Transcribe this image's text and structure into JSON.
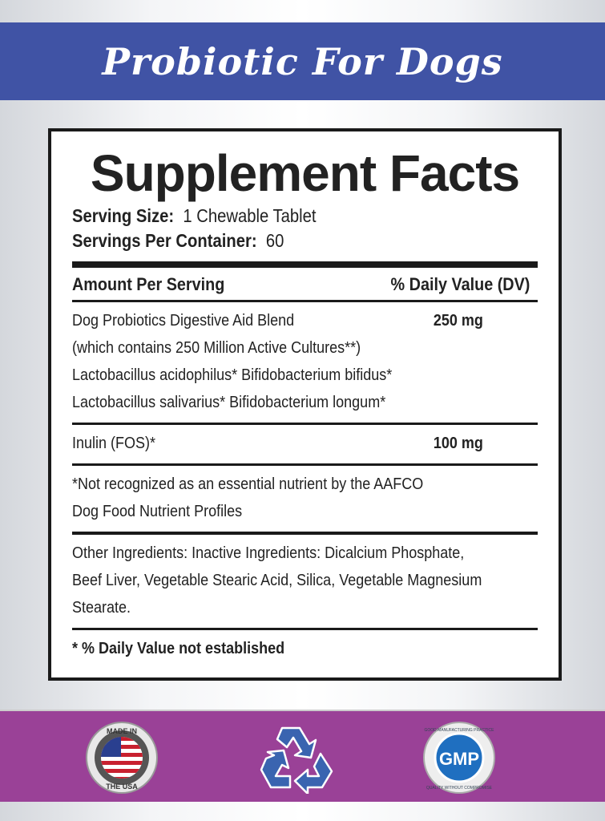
{
  "header": {
    "title": "Probiotic For Dogs"
  },
  "facts": {
    "heading": "Supplement Facts",
    "serving_size_label": "Serving Size:",
    "serving_size_value": "1 Chewable Tablet",
    "servings_label": "Servings Per Container:",
    "servings_value": "60",
    "col_amount": "Amount  Per Serving",
    "col_dv": "% Daily Value (DV)",
    "blend": {
      "lines": [
        "Dog Probiotics Digestive Aid Blend",
        "(which contains 250 Million Active Cultures**)",
        "Lactobacillus acidophilus* Bifidobacterium bifidus*",
        "Lactobacillus salivarius* Bifidobacterium longum*"
      ],
      "amount": "250 mg"
    },
    "inulin": {
      "name": "Inulin (FOS)*",
      "amount": "100 mg"
    },
    "note": [
      "*Not recognized as an essential nutrient by the AAFCO",
      "Dog Food Nutrient Profiles"
    ],
    "other": [
      "Other Ingredients: Inactive Ingredients: Dicalcium Phosphate,",
      "Beef Liver, Vegetable Stearic Acid, Silica, Vegetable Magnesium",
      "Stearate."
    ],
    "footnote": "* % Daily Value not established"
  },
  "badges": {
    "usa_top": "MADE IN",
    "usa_bottom": "THE USA",
    "gmp": "GMP",
    "gmp_top": "GOOD MANUFACTURING PRACTICE",
    "gmp_bottom": "QUALITY WITHOUT COMPROMISE"
  },
  "colors": {
    "top_band": "#4053a5",
    "bottom_band": "#9a4197",
    "icon_blue": "#3a64b0"
  }
}
